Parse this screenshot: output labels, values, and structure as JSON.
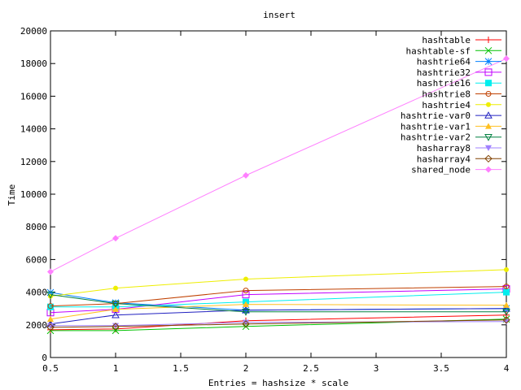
{
  "chart_data": {
    "type": "line",
    "title": "insert",
    "xlabel": "Entries = hashsize * scale",
    "ylabel": "Time",
    "xlim": [
      0.5,
      4
    ],
    "ylim": [
      0,
      20000
    ],
    "xticks": [
      "0.5",
      "1",
      "1.5",
      "2",
      "2.5",
      "3",
      "3.5",
      "4"
    ],
    "yticks": [
      "0",
      "2000",
      "4000",
      "6000",
      "8000",
      "10000",
      "12000",
      "14000",
      "16000",
      "18000",
      "20000"
    ],
    "grid": false,
    "legend": "top-right",
    "x": [
      0.5,
      1,
      2,
      4
    ],
    "series": [
      {
        "name": "hashtable",
        "color": "#ff0000",
        "marker": "plus",
        "values": [
          1700,
          1750,
          2250,
          2600
        ]
      },
      {
        "name": "hashtable-sf",
        "color": "#00c000",
        "marker": "cross",
        "values": [
          1650,
          1650,
          1900,
          2350
        ]
      },
      {
        "name": "hashtrie64",
        "color": "#0080ff",
        "marker": "star",
        "values": [
          3980,
          3350,
          2900,
          3000
        ]
      },
      {
        "name": "hashtrie32",
        "color": "#c000ff",
        "marker": "square-open",
        "values": [
          2750,
          2950,
          3850,
          4200
        ]
      },
      {
        "name": "hashtrie16",
        "color": "#00eeee",
        "marker": "square-filled",
        "values": [
          3100,
          3100,
          3400,
          4000
        ]
      },
      {
        "name": "hashtrie8",
        "color": "#c04000",
        "marker": "circle-open",
        "values": [
          3150,
          3300,
          4100,
          4350
        ]
      },
      {
        "name": "hashtrie4",
        "color": "#eeee00",
        "marker": "circle-filled",
        "values": [
          3750,
          4250,
          4800,
          5380
        ]
      },
      {
        "name": "hashtrie-var0",
        "color": "#2020c0",
        "marker": "triangle-open",
        "values": [
          2050,
          2600,
          2900,
          3000
        ]
      },
      {
        "name": "hashtrie-var1",
        "color": "#ffc020",
        "marker": "triangle-filled",
        "values": [
          2350,
          2950,
          3250,
          3200
        ]
      },
      {
        "name": "hashtrie-var2",
        "color": "#008040",
        "marker": "invtriangle-open",
        "values": [
          3850,
          3300,
          2800,
          2800
        ]
      },
      {
        "name": "hasharray8",
        "color": "#a080ff",
        "marker": "invtriangle-filled",
        "values": [
          1950,
          1950,
          2150,
          2200
        ]
      },
      {
        "name": "hasharray4",
        "color": "#804000",
        "marker": "diamond-open",
        "values": [
          1850,
          1900,
          2050,
          2300
        ]
      },
      {
        "name": "shared_node",
        "color": "#ff80ff",
        "marker": "diamond-filled",
        "values": [
          5250,
          7300,
          11150,
          18300
        ]
      }
    ]
  }
}
